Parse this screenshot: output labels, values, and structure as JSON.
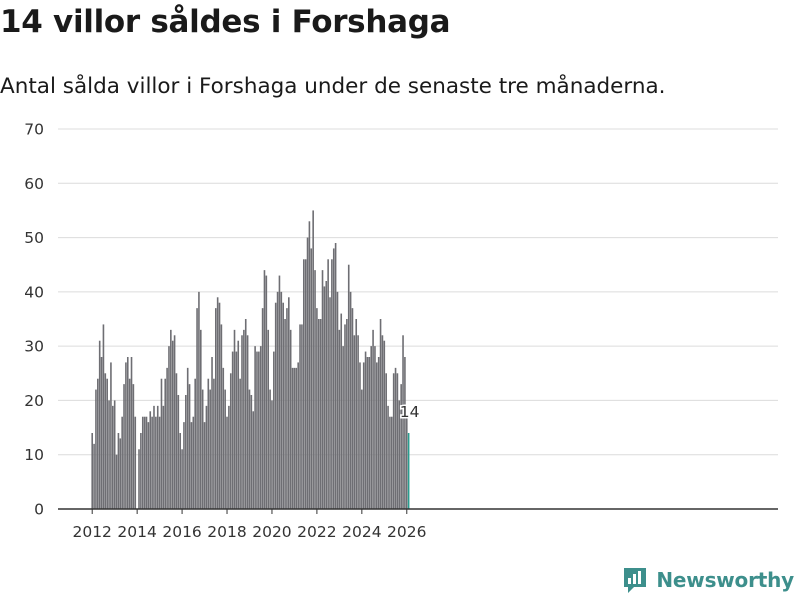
{
  "title": "14 villor såldes i Forshaga",
  "subtitle": "Antal sålda villor i Forshaga under de senaste tre månaderna.",
  "logo_text": "Newsworthy",
  "colors": {
    "bar": "#6e6e73",
    "highlight": "#2a9d8f",
    "grid": "#dcdcdc",
    "axis": "#333333",
    "brand": "#3d8f8c"
  },
  "chart_data": {
    "type": "bar",
    "title": "14 villor såldes i Forshaga",
    "subtitle": "Antal sålda villor i Forshaga under de senaste tre månaderna.",
    "xlabel": "",
    "ylabel": "",
    "ylim": [
      0,
      70
    ],
    "yticks": [
      0,
      10,
      20,
      30,
      40,
      50,
      60,
      70
    ],
    "xticks": [
      "2012",
      "2014",
      "2016",
      "2018",
      "2020",
      "2022",
      "2024",
      "2026"
    ],
    "grid": true,
    "start": "2012-01",
    "frequency": "monthly",
    "highlight_label": "14",
    "values": [
      14,
      12,
      22,
      24,
      31,
      28,
      34,
      25,
      24,
      20,
      27,
      19,
      20,
      10,
      14,
      13,
      17,
      23,
      27,
      28,
      24,
      28,
      23,
      17,
      0,
      11,
      14,
      17,
      17,
      17,
      16,
      18,
      17,
      19,
      17,
      19,
      17,
      24,
      19,
      24,
      26,
      30,
      33,
      31,
      32,
      25,
      21,
      14,
      11,
      16,
      21,
      26,
      23,
      16,
      17,
      24,
      37,
      40,
      33,
      22,
      16,
      19,
      24,
      22,
      28,
      24,
      37,
      39,
      38,
      34,
      26,
      22,
      17,
      19,
      25,
      29,
      33,
      29,
      31,
      24,
      32,
      33,
      35,
      32,
      22,
      21,
      18,
      30,
      29,
      29,
      30,
      37,
      44,
      43,
      33,
      22,
      20,
      29,
      38,
      40,
      43,
      40,
      38,
      35,
      37,
      39,
      33,
      26,
      26,
      26,
      27,
      34,
      34,
      46,
      46,
      50,
      53,
      48,
      55,
      44,
      37,
      35,
      35,
      44,
      41,
      42,
      46,
      39,
      46,
      48,
      49,
      40,
      33,
      36,
      30,
      34,
      35,
      45,
      40,
      37,
      32,
      35,
      32,
      27,
      22,
      27,
      29,
      28,
      28,
      30,
      33,
      30,
      27,
      28,
      35,
      32,
      31,
      25,
      19,
      17,
      17,
      25,
      26,
      25,
      20,
      23,
      32,
      28,
      17,
      14
    ]
  }
}
